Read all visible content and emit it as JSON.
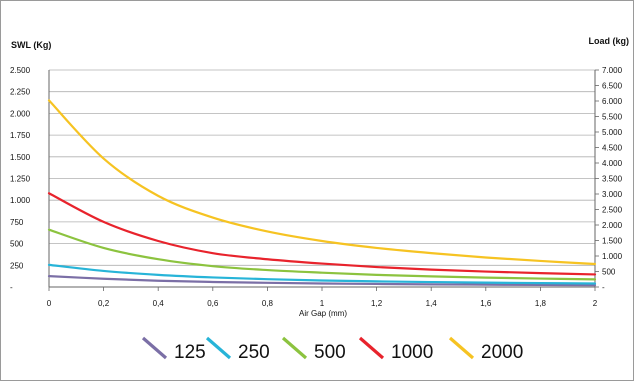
{
  "chart_data": {
    "type": "line",
    "left_axis_label": "SWL  (Kg)",
    "right_axis_label": "Load (kg)",
    "xlabel": "Air Gap (mm)",
    "x_ticks": [
      "0",
      "0,2",
      "0,4",
      "0,6",
      "0,8",
      "1",
      "1,2",
      "1,4",
      "1,6",
      "1,8",
      "2"
    ],
    "xlim": [
      0,
      2
    ],
    "left_ticks": [
      "-",
      "250",
      "500",
      "750",
      "1.000",
      "1.250",
      "1.500",
      "1.750",
      "2.000",
      "2.250",
      "2.500"
    ],
    "left_ylim": [
      0,
      2500
    ],
    "right_ticks": [
      "-",
      "500",
      "1.000",
      "1.500",
      "2.000",
      "2.500",
      "3.000",
      "3.500",
      "4.000",
      "4.500",
      "5.000",
      "5.500",
      "6.000",
      "6.500",
      "7.000"
    ],
    "right_ylim": [
      0,
      7000
    ],
    "grid": true,
    "legend_position": "bottom",
    "x": [
      0,
      0.2,
      0.4,
      0.6,
      0.8,
      1.0,
      1.2,
      1.4,
      1.6,
      1.8,
      2.0
    ],
    "series": [
      {
        "name": "125",
        "color": "#7b6fa6",
        "values": [
          125,
          95,
          72,
          58,
          48,
          40,
          35,
          30,
          27,
          24,
          22
        ]
      },
      {
        "name": "250",
        "color": "#27b4d8",
        "values": [
          255,
          185,
          140,
          110,
          90,
          75,
          65,
          57,
          50,
          45,
          40
        ]
      },
      {
        "name": "500",
        "color": "#8cc33f",
        "values": [
          660,
          450,
          320,
          240,
          195,
          165,
          140,
          122,
          108,
          97,
          88
        ]
      },
      {
        "name": "1000",
        "color": "#e8232c",
        "values": [
          1080,
          750,
          530,
          390,
          320,
          270,
          230,
          200,
          178,
          160,
          145
        ]
      },
      {
        "name": "2000",
        "color": "#f6c322",
        "values": [
          2150,
          1480,
          1050,
          800,
          640,
          530,
          450,
          390,
          340,
          300,
          265
        ]
      }
    ]
  }
}
